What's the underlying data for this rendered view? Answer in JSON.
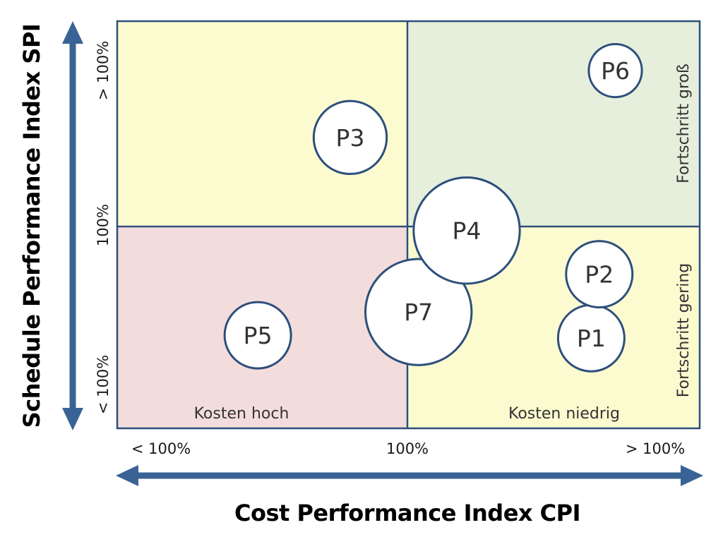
{
  "colors": {
    "top_left": "#fcfbd0",
    "top_right": "#e6efdc",
    "bottom_left": "#f3dcdc",
    "bottom_right": "#fcfbd0",
    "border": "#2d4f7c",
    "arrow": "#3a6395",
    "bubble_fill": "#ffffff",
    "text": "#333333"
  },
  "axes": {
    "x_title": "Cost Performance Index CPI",
    "y_title": "Schedule Performance Index SPI",
    "x_ticks": [
      "< 100%",
      "100%",
      "> 100%"
    ],
    "y_ticks": [
      "> 100%",
      "100%",
      "< 100%"
    ]
  },
  "quadrant_labels": {
    "bottom_left": "Kosten hoch",
    "bottom_right": "Kosten niedrig",
    "right_top": "Fortschritt groß",
    "right_bottom": "Fortschritt gering"
  },
  "projects": [
    {
      "label": "P1",
      "cpi": 1.38,
      "spi": 0.71,
      "size": 1.0
    },
    {
      "label": "P2",
      "cpi": 1.4,
      "spi": 0.93,
      "size": 1.0
    },
    {
      "label": "P3",
      "cpi": 0.78,
      "spi": 1.4,
      "size": 1.1
    },
    {
      "label": "P4",
      "cpi": 1.07,
      "spi": 1.08,
      "size": 1.6
    },
    {
      "label": "P5",
      "cpi": 0.55,
      "spi": 0.72,
      "size": 1.0
    },
    {
      "label": "P6",
      "cpi": 1.44,
      "spi": 1.63,
      "size": 0.8
    },
    {
      "label": "P7",
      "cpi": 0.95,
      "spi": 0.8,
      "size": 1.6
    }
  ]
}
